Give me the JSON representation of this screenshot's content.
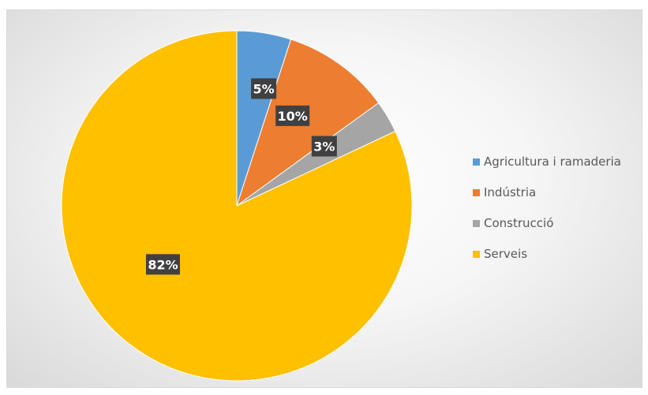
{
  "chart_data": {
    "type": "pie",
    "title": "",
    "categories": [
      "Agricultura i ramaderia",
      "Indústria",
      "Construcció",
      "Serveis"
    ],
    "values": [
      5,
      10,
      3,
      82
    ],
    "data_labels": [
      "5%",
      "10%",
      "3%",
      "82%"
    ],
    "colors": [
      "#5B9BD5",
      "#ED7D31",
      "#A5A5A5",
      "#FFC000"
    ],
    "legend_position": "right",
    "start_angle": "12 o'clock, clockwise"
  }
}
